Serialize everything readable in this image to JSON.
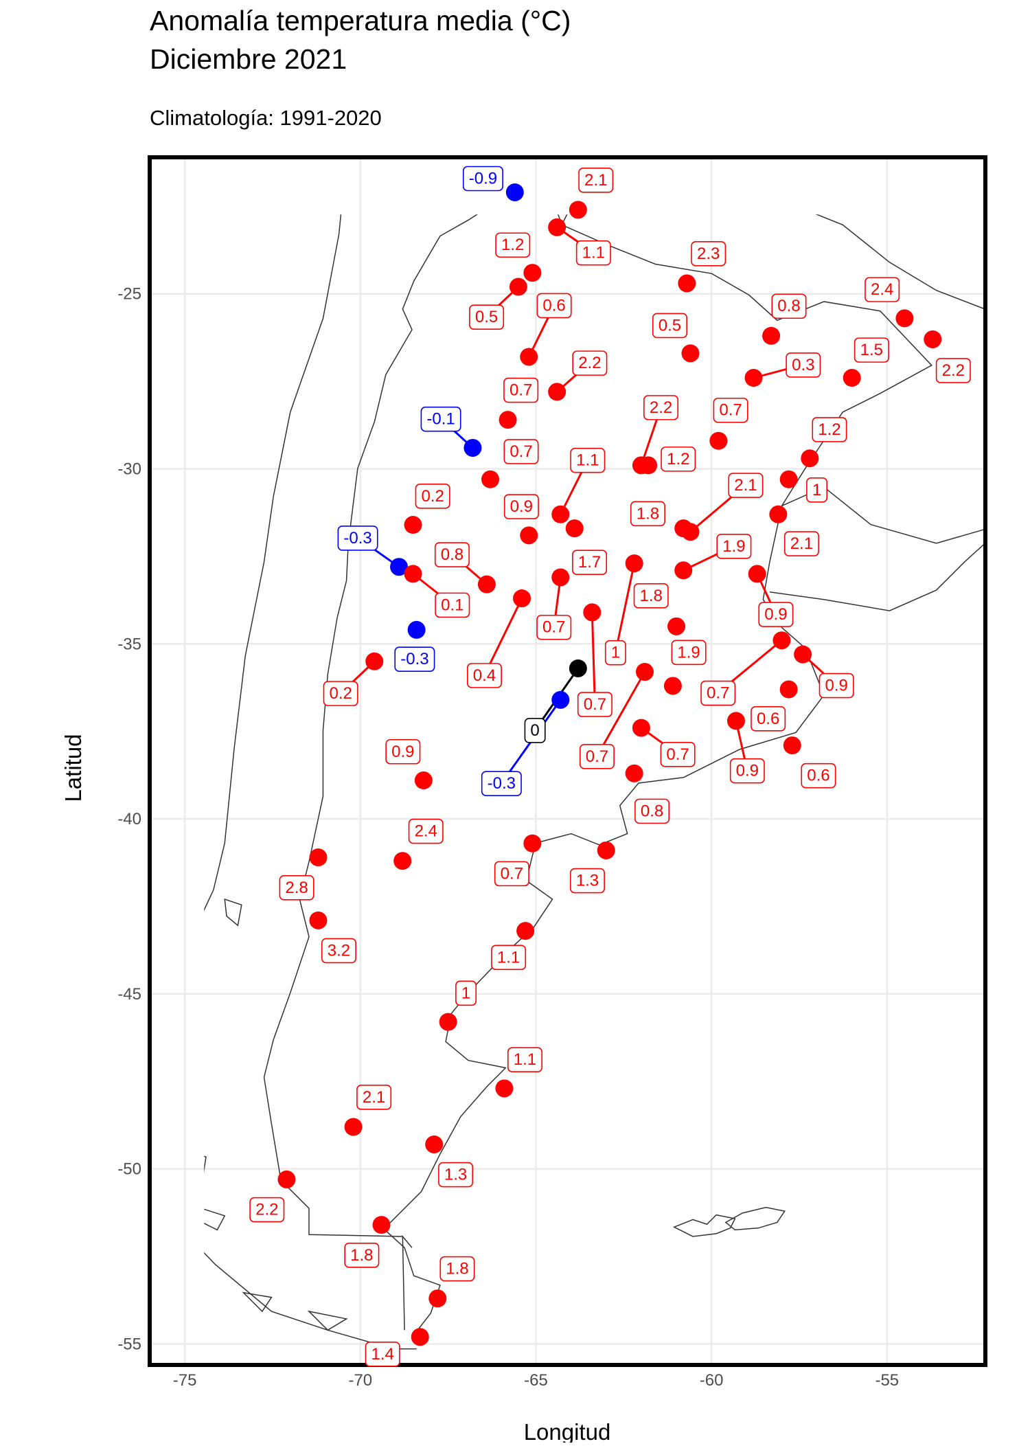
{
  "chart_data": {
    "type": "scatter",
    "title": [
      "Anomalía temperatura media (°C)",
      "Diciembre 2021"
    ],
    "subtitle": "Climatología: 1991-2020",
    "xlabel": "Longitud",
    "ylabel": "Latitud",
    "xlim": [
      -76,
      -52.2
    ],
    "ylim": [
      -55.6,
      -21.1
    ],
    "xticks": [
      -75,
      -70,
      -65,
      -60,
      -55
    ],
    "yticks": [
      -25,
      -30,
      -35,
      -40,
      -45,
      -50,
      -55
    ],
    "grid": true,
    "colors": {
      "positive": "#ff0000",
      "negative": "#0000ff",
      "zero": "#000000"
    },
    "x": [
      -65.6,
      -63.8,
      -64.4,
      -65.1,
      -65.5,
      -65.2,
      -64.4,
      -65.8,
      -66.8,
      -66.3,
      -65.2,
      -64.3,
      -63.9,
      -64.3,
      -68.5,
      -68.9,
      -68.5,
      -66.4,
      -68.4,
      -69.6,
      -65.4,
      -63.4,
      -63.8,
      -64.3,
      -62.2,
      -61.9,
      -62.0,
      -62.2,
      -61.0,
      -61.1,
      -60.8,
      -60.8,
      -60.6,
      -62.0,
      -61.8,
      -59.8,
      -60.7,
      -60.6,
      -58.3,
      -58.8,
      -56.0,
      -54.5,
      -53.7,
      -57.2,
      -57.8,
      -58.1,
      -58.7,
      -58.0,
      -57.4,
      -57.8,
      -59.3,
      -57.7,
      -68.2,
      -68.8,
      -71.2,
      -71.2,
      -65.1,
      -63.0,
      -65.3,
      -67.5,
      -65.9,
      -70.2,
      -67.9,
      -72.1,
      -69.4,
      -67.8,
      -68.3
    ],
    "y": [
      -22.1,
      -22.6,
      -23.1,
      -24.4,
      -24.8,
      -26.8,
      -27.8,
      -28.6,
      -29.4,
      -30.3,
      -31.9,
      -31.3,
      -31.7,
      -33.1,
      -31.6,
      -32.8,
      -33.0,
      -33.3,
      -34.6,
      -35.5,
      -33.7,
      -34.1,
      -35.7,
      -36.6,
      -32.7,
      -35.8,
      -37.4,
      -38.7,
      -34.5,
      -36.2,
      -32.9,
      -31.7,
      -31.8,
      -29.9,
      -29.9,
      -29.2,
      -24.7,
      -26.7,
      -26.2,
      -27.4,
      -27.4,
      -25.7,
      -26.3,
      -29.7,
      -30.3,
      -31.3,
      -33.0,
      -34.9,
      -35.3,
      -36.3,
      -37.2,
      -37.9,
      -38.9,
      -41.2,
      -41.1,
      -42.9,
      -40.7,
      -40.9,
      -43.2,
      -45.8,
      -47.7,
      -48.8,
      -49.3,
      -50.3,
      -51.6,
      -53.7,
      -54.8
    ],
    "values": [
      -0.9,
      2.1,
      1.1,
      1.2,
      0.5,
      0.6,
      2.2,
      0.7,
      -0.1,
      0.7,
      0.9,
      1.1,
      1.7,
      0.7,
      0.2,
      -0.3,
      0.1,
      0.8,
      -0.3,
      0.2,
      0.4,
      0.7,
      0,
      -0.3,
      1,
      0.7,
      0.7,
      0.8,
      1.8,
      1.9,
      1.9,
      1.8,
      2.1,
      2.2,
      1.2,
      0.7,
      2.3,
      0.5,
      0.8,
      0.3,
      1.5,
      2.4,
      2.2,
      1.2,
      1,
      2.1,
      0.9,
      0.7,
      0.9,
      0.6,
      0.9,
      0.6,
      0.9,
      2.4,
      2.8,
      3.2,
      0.7,
      1.3,
      1.1,
      1,
      1.1,
      2.1,
      1.3,
      2.2,
      1.8,
      1.8,
      1.4
    ]
  }
}
